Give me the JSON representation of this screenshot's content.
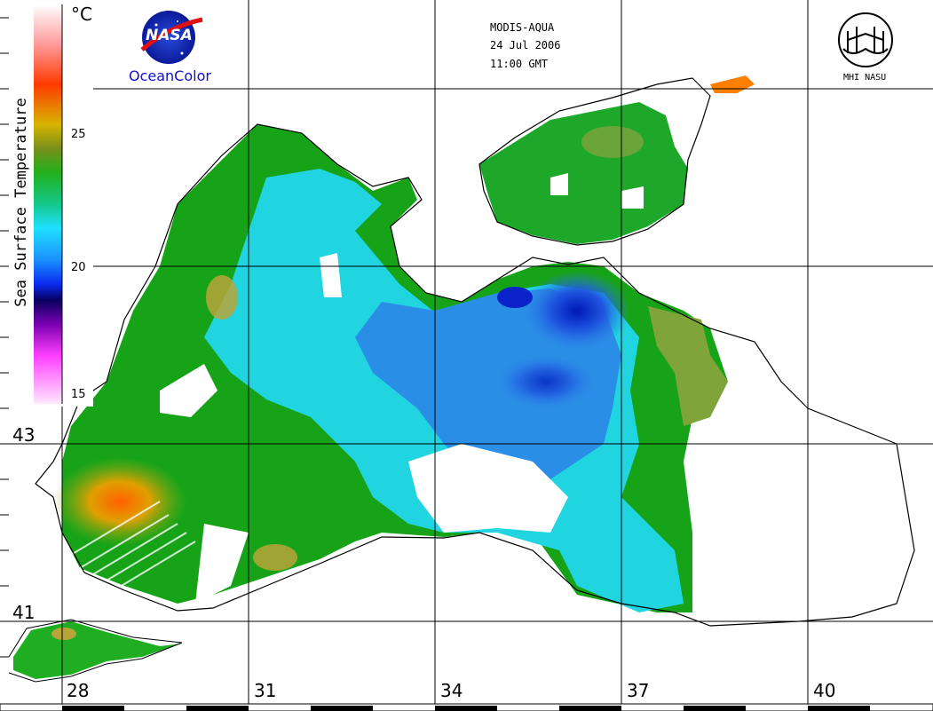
{
  "header": {
    "satellite": "MODIS-AQUA",
    "date": "24 Jul 2006",
    "time": "11:00 GMT"
  },
  "logos": {
    "nasa_text": "NASA",
    "oceancolor": "OceanColor",
    "mhi": "MHI NASU"
  },
  "colorbar": {
    "unit": "°C",
    "title": "Sea Surface Temperature",
    "ticks": [
      "25",
      "20",
      "15"
    ]
  },
  "lat_labels": [
    "43",
    "41"
  ],
  "lon_labels": [
    "28",
    "31",
    "34",
    "37",
    "40"
  ],
  "colors": {
    "warm": "#ff6a00",
    "yellow": "#c8b400",
    "green": "#12a012",
    "cyan": "#1fd6e8",
    "blue": "#1e6de8",
    "deep": "#0a1fc0",
    "grid": "#000000",
    "coast": "#000000"
  }
}
